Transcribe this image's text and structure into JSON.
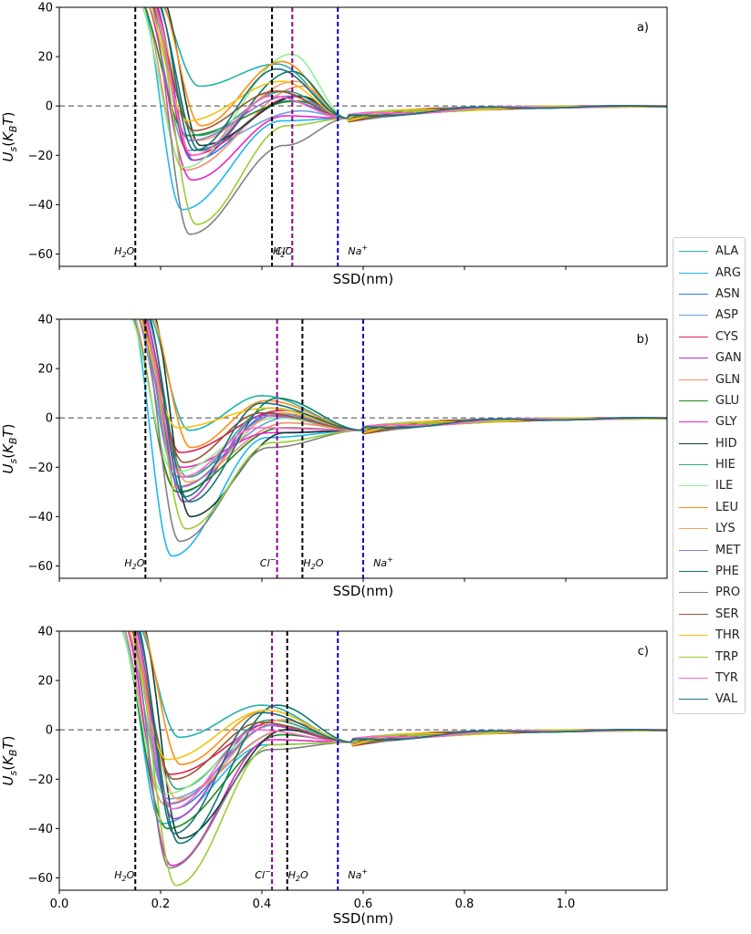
{
  "chart_data": {
    "type": "line",
    "shared": {
      "xlabel": "SSD(nm)",
      "ylabel": "U_s(K_BT)",
      "xlim": [
        0.0,
        1.2
      ],
      "ylim": [
        -65,
        40
      ],
      "yticks": [
        40,
        20,
        0,
        -20,
        -40,
        -60
      ],
      "xticks": [
        0.0,
        0.2,
        0.4,
        0.6,
        0.8,
        1.0
      ],
      "xtick_labels": [
        "0.0",
        "0.2",
        "0.4",
        "0.6",
        "0.8",
        "1.0"
      ],
      "legend_placement": "right"
    },
    "series_names": [
      "ALA",
      "ARG",
      "ASN",
      "ASP",
      "CYS",
      "GAN",
      "GLN",
      "GLU",
      "GLY",
      "HID",
      "HIE",
      "ILE",
      "LEU",
      "LYS",
      "MET",
      "PHE",
      "PRO",
      "SER",
      "THR",
      "TRP",
      "TYR",
      "VAL"
    ],
    "series_colors": [
      "#20b2aa",
      "#1fb8f0",
      "#2f7be0",
      "#6a9fd8",
      "#dc2050",
      "#b23ac8",
      "#f08c70",
      "#1a8a1a",
      "#ee22cc",
      "#0f3f3a",
      "#2ea87a",
      "#90ee90",
      "#ff8c10",
      "#f4a460",
      "#9370db",
      "#0a7a6a",
      "#808080",
      "#a0522d",
      "#f4c20d",
      "#9acd32",
      "#ff66cc",
      "#1a6e7e"
    ],
    "panels": [
      {
        "label": "a)",
        "show_xticks": false,
        "vlines": [
          {
            "x": 0.15,
            "color": "#000000",
            "label": "H2O",
            "sup": ""
          },
          {
            "x": 0.42,
            "color": "#000000",
            "label": "H2O",
            "sup": ""
          },
          {
            "x": 0.46,
            "color": "#8b008b",
            "label": "Cl",
            "sup": "−"
          },
          {
            "x": 0.55,
            "color": "#0000cd",
            "label": "Na",
            "sup": "+"
          }
        ],
        "min_x": 0.26,
        "bump_x": 0.45,
        "tail_x": 0.52,
        "minima": [
          8,
          -42,
          -22,
          -18,
          -20,
          -22,
          -26,
          -12,
          -30,
          -16,
          -12,
          -25,
          -8,
          -14,
          -14,
          -18,
          -52,
          -10,
          -6,
          -48,
          -20,
          -18
        ],
        "bumps": [
          17,
          -6,
          2,
          -2,
          4,
          6,
          8,
          2,
          -4,
          4,
          6,
          21,
          18,
          10,
          4,
          14,
          -16,
          6,
          10,
          -8,
          4,
          15
        ]
      },
      {
        "label": "b)",
        "show_xticks": false,
        "vlines": [
          {
            "x": 0.17,
            "color": "#000000",
            "label": "H2O",
            "sup": ""
          },
          {
            "x": 0.43,
            "color": "#8b008b",
            "label": "Cl",
            "sup": "−"
          },
          {
            "x": 0.48,
            "color": "#000000",
            "label": "H2O",
            "sup": ""
          },
          {
            "x": 0.6,
            "color": "#0000cd",
            "label": "Na",
            "sup": "+"
          }
        ],
        "min_x": 0.24,
        "bump_x": 0.42,
        "tail_x": 0.55,
        "minima": [
          -5,
          -56,
          -30,
          -24,
          -14,
          -34,
          -28,
          -30,
          -20,
          -40,
          -24,
          -22,
          -12,
          -26,
          -28,
          -34,
          -50,
          -18,
          -4,
          -45,
          -24,
          -32
        ],
        "bumps": [
          9,
          -8,
          2,
          0,
          3,
          1,
          -2,
          -4,
          -6,
          -6,
          4,
          0,
          7,
          2,
          1,
          8,
          -12,
          2,
          4,
          -10,
          -4,
          6
        ]
      },
      {
        "label": "c)",
        "show_xticks": true,
        "vlines": [
          {
            "x": 0.15,
            "color": "#000000",
            "label": "H2O",
            "sup": ""
          },
          {
            "x": 0.42,
            "color": "#8b008b",
            "label": "Cl",
            "sup": "−"
          },
          {
            "x": 0.45,
            "color": "#000000",
            "label": "H2O",
            "sup": ""
          },
          {
            "x": 0.55,
            "color": "#0000cd",
            "label": "Na",
            "sup": "+"
          }
        ],
        "min_x": 0.22,
        "bump_x": 0.42,
        "tail_x": 0.53,
        "minima": [
          -3,
          -38,
          -32,
          -28,
          -18,
          -36,
          -30,
          -40,
          -55,
          -44,
          -24,
          -26,
          -14,
          -28,
          -30,
          -46,
          -56,
          -20,
          -12,
          -63,
          -32,
          -42
        ],
        "bumps": [
          10,
          -6,
          2,
          0,
          4,
          2,
          0,
          -2,
          -4,
          0,
          4,
          2,
          8,
          4,
          2,
          10,
          -8,
          3,
          8,
          -6,
          0,
          7
        ]
      }
    ]
  }
}
